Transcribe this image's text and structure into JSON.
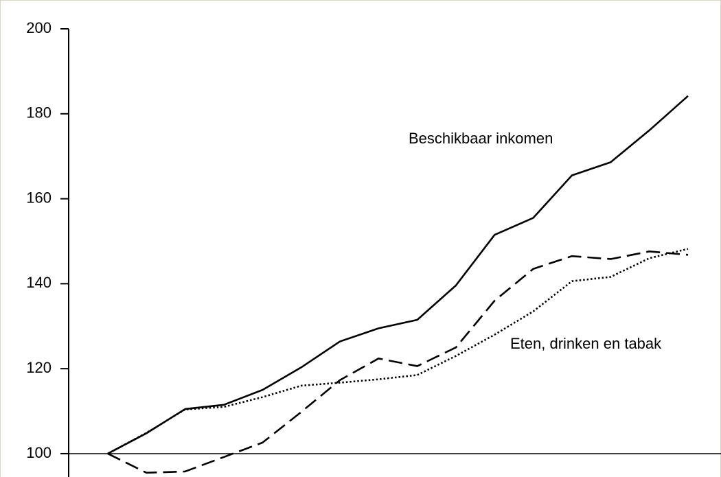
{
  "chart_data": {
    "type": "line",
    "categories": [
      null,
      null,
      null,
      null,
      null,
      null,
      null,
      null,
      null,
      null,
      null,
      null,
      null,
      null,
      null,
      null
    ],
    "series": [
      {
        "color": "#000000",
        "dash": "solid",
        "values": [
          100,
          104.8,
          110.5,
          111.5,
          115,
          120.3,
          126.4,
          129.5,
          131.5,
          139.6,
          151.5,
          155.5,
          165.5,
          168.6,
          176.1,
          184.2
        ]
      },
      {
        "color": "#000000",
        "dash": "dashed",
        "values": [
          100,
          95.5,
          95.8,
          99.2,
          102.6,
          109.8,
          117.3,
          122.4,
          120.6,
          125,
          136,
          143.5,
          146.5,
          145.8,
          147.6,
          146.8
        ]
      },
      {
        "color": "#000000",
        "dash": "dotted",
        "values": [
          100,
          104.9,
          110.4,
          111,
          113.3,
          116,
          116.7,
          117.5,
          118.5,
          123,
          128,
          133.5,
          140.6,
          141.6,
          146,
          148.2
        ]
      }
    ],
    "annotations": [
      "Beschikbaar inkomen",
      "Eten, drinken en tabak"
    ],
    "baseline": 100,
    "ylim": [
      94.5,
      200
    ],
    "yticks": [
      100,
      120,
      140,
      160,
      180,
      200
    ],
    "grid": false
  }
}
